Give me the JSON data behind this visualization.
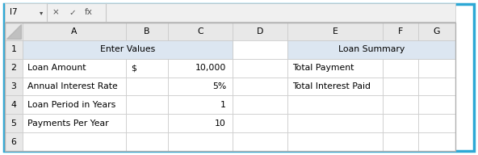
{
  "formula_bar_label": "I7",
  "col_headers": [
    "A",
    "B",
    "C",
    "D",
    "E",
    "F",
    "G"
  ],
  "row_labels": [
    "1",
    "2",
    "3",
    "4",
    "5",
    "6"
  ],
  "header_bg": "#dce6f1",
  "cell_bg": "#ffffff",
  "grid_color": "#c8c8c8",
  "col_header_bg": "#e8e8e8",
  "row_header_bg": "#e8e8e8",
  "left_section_header": "Enter Values",
  "right_section_header": "Loan Summary",
  "left_rows": [
    [
      "Loan Amount",
      "$",
      "10,000"
    ],
    [
      "Annual Interest Rate",
      "",
      "5%"
    ],
    [
      "Loan Period in Years",
      "",
      "1"
    ],
    [
      "Payments Per Year",
      "",
      "10"
    ]
  ],
  "right_rows": [
    [
      "Total Payment",
      ""
    ],
    [
      "Total Interest Paid",
      ""
    ]
  ],
  "font_size": 7.8,
  "outer_border_color": "#2ea8d5",
  "outer_border_lw": 2.5,
  "fig_w": 5.92,
  "fig_h": 1.92
}
